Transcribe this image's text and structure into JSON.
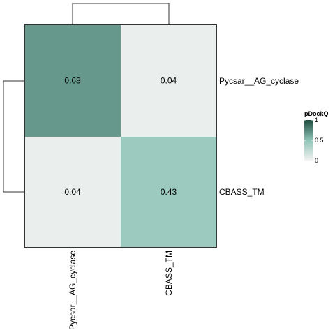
{
  "chart_data": {
    "type": "heatmap",
    "rows": [
      "Pycsar__AG_cyclase",
      "CBASS_TM"
    ],
    "columns": [
      "Pycsar__AG_cyclase",
      "CBASS_TM"
    ],
    "values": [
      [
        0.68,
        0.04
      ],
      [
        0.04,
        0.43
      ]
    ],
    "value_labels": [
      [
        "0.68",
        "0.04"
      ],
      [
        "0.04",
        "0.43"
      ]
    ],
    "color_scale": {
      "min": 0,
      "max": 1,
      "low_color": "#f2f2f2",
      "mid_color": "#8fc4b6",
      "high_color": "#1e4d40"
    },
    "legend": {
      "title": "pDockQ",
      "ticks": [
        "0",
        "0.5",
        "1"
      ],
      "tick_values": [
        0,
        0.5,
        1
      ],
      "placement": "right"
    },
    "row_dendrogram": true,
    "column_dendrogram": true
  }
}
